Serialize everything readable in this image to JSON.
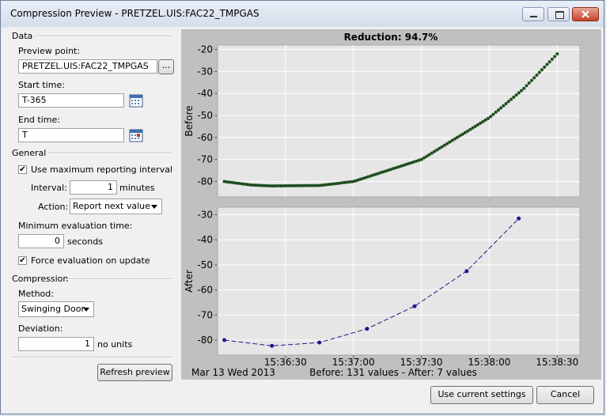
{
  "window": {
    "title": "Compression Preview - PRETZEL.UIS:FAC22_TMPGAS"
  },
  "data_section": {
    "label": "Data",
    "preview_point_label": "Preview point:",
    "preview_point_value": "PRETZEL.UIS:FAC22_TMPGAS",
    "browse_label": "...",
    "start_time_label": "Start time:",
    "start_time_value": "T-365",
    "end_time_label": "End time:",
    "end_time_value": "T"
  },
  "general_section": {
    "label": "General",
    "use_max_label": "Use maximum reporting interval",
    "use_max_checked": true,
    "interval_label": "Interval:",
    "interval_value": "1",
    "interval_unit": "minutes",
    "action_label": "Action:",
    "action_value": "Report next value",
    "min_eval_label": "Minimum evaluation time:",
    "min_eval_value": "0",
    "min_eval_unit": "seconds",
    "force_eval_label": "Force evaluation on update",
    "force_eval_checked": true
  },
  "compression_section": {
    "label": "Compression",
    "method_label": "Method:",
    "method_value": "Swinging Door",
    "deviation_label": "Deviation:",
    "deviation_value": "1",
    "deviation_unit": "no units"
  },
  "buttons": {
    "refresh": "Refresh preview",
    "use_current": "Use current settings",
    "cancel": "Cancel"
  },
  "chart_data": {
    "type": "scatter",
    "title": "Reduction: 94.7%",
    "x_tick_labels": [
      "15:36:30",
      "15:37:00",
      "15:37:30",
      "15:38:00",
      "15:38:30"
    ],
    "x_tick_seconds": [
      30,
      60,
      90,
      120,
      150
    ],
    "xlim_seconds": [
      0,
      160
    ],
    "date_label": "Mar 13 Wed 2013",
    "summary": "Before: 131 values - After: 7 values",
    "before": {
      "ylabel": "Before",
      "ylim": [
        -87,
        -18
      ],
      "y_ticks": [
        -20,
        -30,
        -40,
        -50,
        -60,
        -70,
        -80
      ],
      "point_count": 131,
      "color": "#1f4d1f",
      "x_range_seconds": [
        3,
        150
      ],
      "curve_control_points": [
        [
          3,
          -80
        ],
        [
          15,
          -81.6
        ],
        [
          24,
          -82
        ],
        [
          45,
          -81.8
        ],
        [
          60,
          -80
        ],
        [
          90,
          -70
        ],
        [
          120,
          -51
        ],
        [
          135,
          -38
        ],
        [
          150,
          -22
        ]
      ]
    },
    "after": {
      "ylabel": "After",
      "ylim": [
        -86,
        -27
      ],
      "y_ticks": [
        -30,
        -40,
        -50,
        -60,
        -70,
        -80
      ],
      "color": "#1a1a8c",
      "x": [
        3,
        24,
        45,
        66,
        87,
        110,
        133
      ],
      "y": [
        -80,
        -82.3,
        -81,
        -75.5,
        -66.5,
        -52.5,
        -31.5
      ]
    }
  }
}
